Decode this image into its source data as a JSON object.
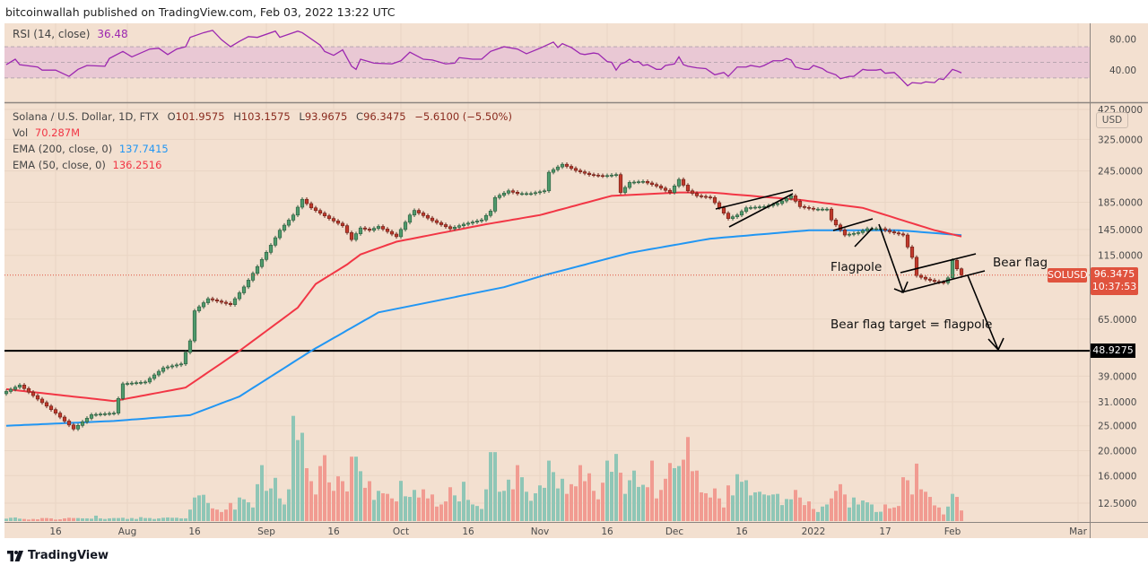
{
  "header": {
    "published": "bitcoinwallah published on TradingView.com, Feb 03, 2022 13:22 UTC"
  },
  "rsi_legend": {
    "label": "RSI (14, close)",
    "value": "36.48"
  },
  "legend": {
    "symbol": "Solana / U.S. Dollar, 1D, FTX",
    "o_label": "O",
    "o": "101.9575",
    "h_label": "H",
    "h": "103.1575",
    "l_label": "L",
    "l": "93.9675",
    "c_label": "C",
    "c": "96.3475",
    "change": "−5.6100 (−5.50%)",
    "vol_label": "Vol",
    "vol": "70.287M",
    "ema200_label": "EMA (200, close, 0)",
    "ema200": "137.7415",
    "ema50_label": "EMA (50, close, 0)",
    "ema50": "136.2516"
  },
  "price_scale": {
    "currency": "USD",
    "ticks": [
      "425.0000",
      "325.0000",
      "245.0000",
      "185.0000",
      "145.0000",
      "115.0000",
      "65.0000",
      "39.0000",
      "31.0000",
      "25.0000",
      "20.0000",
      "16.0000",
      "12.5000"
    ],
    "tick_values": [
      425,
      325,
      245,
      185,
      145,
      115,
      65,
      39,
      31,
      25,
      20,
      16,
      12.5
    ],
    "symbol_tag": "SOLUSD",
    "last_price": "96.3475",
    "countdown": "10:37:53",
    "level_label": "48.9275"
  },
  "rsi_scale": {
    "ticks": [
      "80.00",
      "40.00"
    ],
    "tick_values": [
      80,
      40
    ]
  },
  "time_axis": {
    "labels": [
      {
        "text": "16",
        "date": "2021-07-16"
      },
      {
        "text": "Aug",
        "date": "2021-08-01"
      },
      {
        "text": "16",
        "date": "2021-08-16"
      },
      {
        "text": "Sep",
        "date": "2021-09-01"
      },
      {
        "text": "16",
        "date": "2021-09-16"
      },
      {
        "text": "Oct",
        "date": "2021-10-01"
      },
      {
        "text": "16",
        "date": "2021-10-16"
      },
      {
        "text": "Nov",
        "date": "2021-11-01"
      },
      {
        "text": "16",
        "date": "2021-11-16"
      },
      {
        "text": "Dec",
        "date": "2021-12-01"
      },
      {
        "text": "16",
        "date": "2021-12-16"
      },
      {
        "text": "2022",
        "date": "2022-01-01"
      },
      {
        "text": "17",
        "date": "2022-01-17"
      },
      {
        "text": "Feb",
        "date": "2022-02-01"
      },
      {
        "text": "Mar",
        "date": "2022-03-01"
      }
    ]
  },
  "annotations": {
    "flagpole": "Flagpole",
    "bear_flag": "Bear flag",
    "target": "Bear flag target = flagpole"
  },
  "footer": {
    "brand": "TradingView"
  },
  "colors": {
    "background": "#f3e0d0",
    "candle_up": "#4f9a6c",
    "candle_down": "#c0392b",
    "volume_up": "#8fc6b6",
    "volume_down": "#f19b91",
    "ema50": "#f23645",
    "ema200": "#2196f3",
    "rsi_line": "#9c27b0",
    "rsi_band": "#e9c8d4",
    "last_price": "#e0533e",
    "level_line": "#000000"
  },
  "chart_data": {
    "type": "candlestick",
    "symbol": "SOLUSD",
    "interval": "1D",
    "y_scale": "log",
    "price_range": [
      12.5,
      425
    ],
    "date_range": [
      "2021-07-05",
      "2022-02-03"
    ],
    "closes": [
      [
        "2021-07-05",
        34
      ],
      [
        "2021-07-08",
        36
      ],
      [
        "2021-07-16",
        28
      ],
      [
        "2021-07-20",
        24.3
      ],
      [
        "2021-07-24",
        27.6
      ],
      [
        "2021-07-29",
        28
      ],
      [
        "2021-07-31",
        36.4
      ],
      [
        "2021-08-05",
        37
      ],
      [
        "2021-08-09",
        42
      ],
      [
        "2021-08-13",
        43.5
      ],
      [
        "2021-08-15",
        53.5
      ],
      [
        "2021-08-16",
        70
      ],
      [
        "2021-08-19",
        78
      ],
      [
        "2021-08-24",
        74
      ],
      [
        "2021-08-27",
        86.7
      ],
      [
        "2021-08-30",
        104
      ],
      [
        "2021-09-02",
        126
      ],
      [
        "2021-09-04",
        144
      ],
      [
        "2021-09-07",
        165
      ],
      [
        "2021-09-09",
        190
      ],
      [
        "2021-09-11",
        176
      ],
      [
        "2021-09-15",
        160
      ],
      [
        "2021-09-18",
        150
      ],
      [
        "2021-09-20",
        132.5
      ],
      [
        "2021-09-22",
        147
      ],
      [
        "2021-09-24",
        144
      ],
      [
        "2021-09-26",
        149
      ],
      [
        "2021-09-30",
        136
      ],
      [
        "2021-10-03",
        165
      ],
      [
        "2021-10-04",
        172
      ],
      [
        "2021-10-08",
        157
      ],
      [
        "2021-10-12",
        146
      ],
      [
        "2021-10-15",
        152
      ],
      [
        "2021-10-19",
        158
      ],
      [
        "2021-10-21",
        171
      ],
      [
        "2021-10-22",
        193
      ],
      [
        "2021-10-25",
        205
      ],
      [
        "2021-10-27",
        200
      ],
      [
        "2021-10-30",
        200
      ],
      [
        "2021-11-02",
        205
      ],
      [
        "2021-11-03",
        242
      ],
      [
        "2021-11-06",
        260
      ],
      [
        "2021-11-09",
        246
      ],
      [
        "2021-11-12",
        237
      ],
      [
        "2021-11-15",
        234
      ],
      [
        "2021-11-18",
        237
      ],
      [
        "2021-11-19",
        202
      ],
      [
        "2021-11-21",
        221
      ],
      [
        "2021-11-24",
        223
      ],
      [
        "2021-11-27",
        214
      ],
      [
        "2021-11-30",
        202
      ],
      [
        "2021-12-02",
        227
      ],
      [
        "2021-12-04",
        205
      ],
      [
        "2021-12-06",
        196
      ],
      [
        "2021-12-09",
        193
      ],
      [
        "2021-12-11",
        176
      ],
      [
        "2021-12-13",
        160
      ],
      [
        "2021-12-15",
        165
      ],
      [
        "2021-12-17",
        176
      ],
      [
        "2021-12-21",
        178
      ],
      [
        "2021-12-24",
        183
      ],
      [
        "2021-12-27",
        196
      ],
      [
        "2021-12-29",
        178
      ],
      [
        "2022-01-01",
        174
      ],
      [
        "2022-01-04",
        174
      ],
      [
        "2022-01-05",
        158
      ],
      [
        "2022-01-08",
        138
      ],
      [
        "2022-01-11",
        141
      ],
      [
        "2022-01-13",
        146
      ],
      [
        "2022-01-16",
        146
      ],
      [
        "2022-01-18",
        142
      ],
      [
        "2022-01-21",
        138
      ],
      [
        "2022-01-22",
        124
      ],
      [
        "2022-01-23",
        113
      ],
      [
        "2022-01-24",
        96
      ],
      [
        "2022-01-26",
        93
      ],
      [
        "2022-01-28",
        91
      ],
      [
        "2022-01-30",
        90
      ],
      [
        "2022-01-31",
        94
      ],
      [
        "2022-02-01",
        110
      ],
      [
        "2022-02-02",
        101.9575
      ],
      [
        "2022-02-03",
        96.3475
      ]
    ],
    "last_candle": {
      "date": "2022-02-03",
      "open": 101.9575,
      "high": 103.1575,
      "low": 93.9675,
      "close": 96.3475,
      "change": -5.61,
      "change_pct": -5.5
    },
    "volume_unit": "M",
    "volume_daily": [
      16,
      22,
      24,
      16,
      14,
      10,
      14,
      12,
      20,
      20,
      18,
      10,
      12,
      18,
      22,
      20,
      20,
      18,
      18,
      16,
      36,
      18,
      14,
      18,
      20,
      20,
      22,
      14,
      20,
      14,
      26,
      20,
      20,
      14,
      18,
      22,
      24,
      22,
      22,
      18,
      18,
      76,
      156,
      170,
      174,
      120,
      84,
      76,
      60,
      76,
      120,
      76,
      156,
      144,
      124,
      90,
      244,
      370,
      200,
      216,
      286,
      150,
      110,
      210,
      696,
      536,
      584,
      350,
      264,
      176,
      364,
      436,
      256,
      200,
      296,
      264,
      196,
      426,
      426,
      330,
      220,
      264,
      140,
      200,
      184,
      180,
      150,
      130,
      266,
      164,
      160,
      206,
      156,
      210,
      150,
      176,
      96,
      110,
      130,
      224,
      170,
      130,
      260,
      140,
      110,
      100,
      80,
      210,
      456,
      456,
      194,
      200,
      274,
      210,
      370,
      290,
      194,
      134,
      184,
      236,
      220,
      400,
      324,
      216,
      280,
      180,
      244,
      230,
      370,
      264,
      316,
      200,
      144,
      254,
      400,
      326,
      444,
      320,
      180,
      270,
      334,
      226,
      240,
      224,
      400,
      150,
      206,
      280,
      384,
      350,
      364,
      406,
      556,
      330,
      334,
      190,
      184,
      156,
      216,
      150,
      90,
      236,
      170,
      310,
      260,
      270,
      170,
      190,
      194,
      176,
      170,
      176,
      180,
      106,
      146,
      144,
      206,
      156,
      106,
      130,
      80,
      60,
      96,
      110,
      150,
      200,
      244,
      176,
      90,
      156,
      110,
      136,
      124,
      110,
      60,
      62,
      110,
      84,
      90,
      100,
      290,
      270,
      176,
      380,
      210,
      194,
      160,
      104,
      90,
      44,
      96,
      180,
      160,
      70.287
    ],
    "ema50": [
      [
        "2021-07-05",
        34.7
      ],
      [
        "2021-07-29",
        31.2
      ],
      [
        "2021-08-14",
        35.2
      ],
      [
        "2021-08-26",
        48.9
      ],
      [
        "2021-09-08",
        72
      ],
      [
        "2021-09-12",
        89
      ],
      [
        "2021-09-19",
        106
      ],
      [
        "2021-09-22",
        116
      ],
      [
        "2021-09-30",
        130
      ],
      [
        "2021-10-20",
        152
      ],
      [
        "2021-11-01",
        165
      ],
      [
        "2021-11-17",
        196
      ],
      [
        "2021-12-02",
        202
      ],
      [
        "2021-12-09",
        202
      ],
      [
        "2021-12-29",
        189
      ],
      [
        "2022-01-12",
        176
      ],
      [
        "2022-01-28",
        144
      ],
      [
        "2022-02-03",
        136.2516
      ]
    ],
    "ema200": [
      [
        "2021-07-05",
        25
      ],
      [
        "2021-07-29",
        26.1
      ],
      [
        "2021-08-15",
        27.5
      ],
      [
        "2021-08-26",
        32.5
      ],
      [
        "2021-09-11",
        48.9
      ],
      [
        "2021-09-26",
        69
      ],
      [
        "2021-10-24",
        86.5
      ],
      [
        "2021-11-02",
        96.3
      ],
      [
        "2021-11-21",
        117.6
      ],
      [
        "2021-12-09",
        133.6
      ],
      [
        "2021-12-31",
        144
      ],
      [
        "2022-01-20",
        144
      ],
      [
        "2022-02-03",
        137.7415
      ]
    ],
    "rsi": {
      "period": 14,
      "range": [
        0,
        100
      ],
      "band": [
        30,
        70
      ],
      "midline": 50,
      "points": [
        [
          "2021-07-05",
          47
        ],
        [
          "2021-07-07",
          54
        ],
        [
          "2021-07-08",
          47
        ],
        [
          "2021-07-12",
          44
        ],
        [
          "2021-07-13",
          40
        ],
        [
          "2021-07-16",
          40
        ],
        [
          "2021-07-19",
          32
        ],
        [
          "2021-07-21",
          41
        ],
        [
          "2021-07-23",
          46
        ],
        [
          "2021-07-27",
          45
        ],
        [
          "2021-07-28",
          55
        ],
        [
          "2021-07-31",
          64
        ],
        [
          "2021-08-02",
          57
        ],
        [
          "2021-08-06",
          67
        ],
        [
          "2021-08-08",
          68
        ],
        [
          "2021-08-10",
          60
        ],
        [
          "2021-08-12",
          67
        ],
        [
          "2021-08-14",
          70
        ],
        [
          "2021-08-15",
          82
        ],
        [
          "2021-08-18",
          88
        ],
        [
          "2021-08-20",
          91
        ],
        [
          "2021-08-22",
          79
        ],
        [
          "2021-08-24",
          70
        ],
        [
          "2021-08-26",
          77
        ],
        [
          "2021-08-28",
          83
        ],
        [
          "2021-08-30",
          82
        ],
        [
          "2021-09-03",
          90
        ],
        [
          "2021-09-04",
          82
        ],
        [
          "2021-09-08",
          90
        ],
        [
          "2021-09-09",
          88
        ],
        [
          "2021-09-13",
          72
        ],
        [
          "2021-09-14",
          64
        ],
        [
          "2021-09-16",
          59
        ],
        [
          "2021-09-18",
          66
        ],
        [
          "2021-09-20",
          45
        ],
        [
          "2021-09-21",
          41
        ],
        [
          "2021-09-22",
          54
        ],
        [
          "2021-09-25",
          49
        ],
        [
          "2021-09-29",
          48
        ],
        [
          "2021-10-01",
          52
        ],
        [
          "2021-10-03",
          63
        ],
        [
          "2021-10-06",
          54
        ],
        [
          "2021-10-08",
          53
        ],
        [
          "2021-10-11",
          48
        ],
        [
          "2021-10-13",
          49
        ],
        [
          "2021-10-14",
          56
        ],
        [
          "2021-10-17",
          54
        ],
        [
          "2021-10-19",
          54
        ],
        [
          "2021-10-21",
          64
        ],
        [
          "2021-10-24",
          70
        ],
        [
          "2021-10-27",
          67
        ],
        [
          "2021-10-29",
          61
        ],
        [
          "2021-11-01",
          68
        ],
        [
          "2021-11-04",
          76
        ],
        [
          "2021-11-05",
          69
        ],
        [
          "2021-11-06",
          74
        ],
        [
          "2021-11-08",
          69
        ],
        [
          "2021-11-10",
          61
        ],
        [
          "2021-11-11",
          60
        ],
        [
          "2021-11-13",
          62
        ],
        [
          "2021-11-14",
          61
        ],
        [
          "2021-11-16",
          51
        ],
        [
          "2021-11-17",
          50
        ],
        [
          "2021-11-18",
          40
        ],
        [
          "2021-11-19",
          48
        ],
        [
          "2021-11-20",
          50
        ],
        [
          "2021-11-21",
          54
        ],
        [
          "2021-11-22",
          50
        ],
        [
          "2021-11-23",
          51
        ],
        [
          "2021-11-24",
          46
        ],
        [
          "2021-11-25",
          47
        ],
        [
          "2021-11-27",
          41
        ],
        [
          "2021-11-28",
          41
        ],
        [
          "2021-11-29",
          46
        ],
        [
          "2021-12-01",
          48
        ],
        [
          "2021-12-02",
          57
        ],
        [
          "2021-12-03",
          47
        ],
        [
          "2021-12-04",
          45
        ],
        [
          "2021-12-06",
          43
        ],
        [
          "2021-12-08",
          42
        ],
        [
          "2021-12-09",
          38
        ],
        [
          "2021-12-10",
          34
        ],
        [
          "2021-12-12",
          37
        ],
        [
          "2021-12-13",
          32
        ],
        [
          "2021-12-15",
          44
        ],
        [
          "2021-12-17",
          44
        ],
        [
          "2021-12-18",
          46
        ],
        [
          "2021-12-20",
          44
        ],
        [
          "2021-12-21",
          46
        ],
        [
          "2021-12-23",
          52
        ],
        [
          "2021-12-25",
          52
        ],
        [
          "2021-12-26",
          55
        ],
        [
          "2021-12-27",
          53
        ],
        [
          "2021-12-28",
          44
        ],
        [
          "2021-12-30",
          41
        ],
        [
          "2021-12-31",
          41
        ],
        [
          "2022-01-01",
          46
        ],
        [
          "2022-01-03",
          42
        ],
        [
          "2022-01-04",
          38
        ],
        [
          "2022-01-06",
          34
        ],
        [
          "2022-01-07",
          29
        ],
        [
          "2022-01-09",
          32
        ],
        [
          "2022-01-10",
          32
        ],
        [
          "2022-01-12",
          41
        ],
        [
          "2022-01-13",
          40
        ],
        [
          "2022-01-15",
          40
        ],
        [
          "2022-01-16",
          41
        ],
        [
          "2022-01-17",
          36
        ],
        [
          "2022-01-19",
          37
        ],
        [
          "2022-01-20",
          32
        ],
        [
          "2022-01-22",
          20
        ],
        [
          "2022-01-23",
          24
        ],
        [
          "2022-01-25",
          23
        ],
        [
          "2022-01-26",
          25
        ],
        [
          "2022-01-28",
          24
        ],
        [
          "2022-01-29",
          29
        ],
        [
          "2022-01-30",
          28
        ],
        [
          "2022-02-01",
          41
        ],
        [
          "2022-02-02",
          39
        ],
        [
          "2022-02-03",
          36.48
        ]
      ]
    },
    "horizontal_level": 48.9275,
    "grid": true
  }
}
